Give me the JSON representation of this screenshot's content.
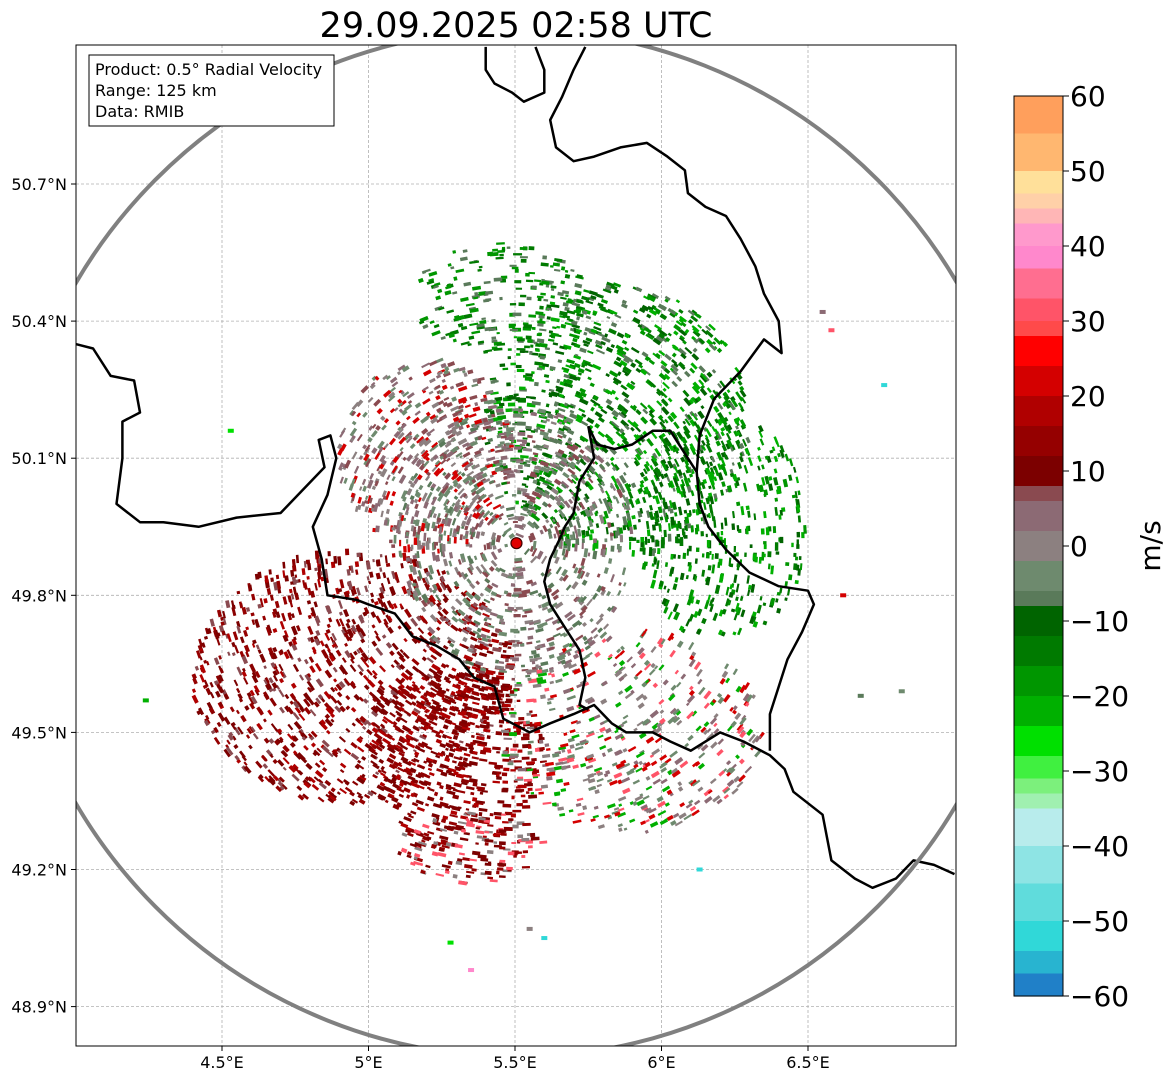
{
  "title": "29.09.2025 02:58 UTC",
  "info_box": {
    "product": "Product: 0.5° Radial Velocity",
    "range": "Range: 125 km",
    "data": "Data: RMIB"
  },
  "chart_data": {
    "type": "radar-map",
    "title": "29.09.2025 02:58 UTC",
    "xlim": [
      4.0,
      7.0
    ],
    "ylim": [
      48.8,
      51.0
    ],
    "x_ticks": [
      {
        "value": 4.5,
        "label": "4.5°E"
      },
      {
        "value": 5.0,
        "label": "5°E"
      },
      {
        "value": 5.5,
        "label": "5.5°E"
      },
      {
        "value": 6.0,
        "label": "6°E"
      },
      {
        "value": 6.5,
        "label": "6.5°E"
      }
    ],
    "y_ticks": [
      {
        "value": 50.7,
        "label": "50.7°N"
      },
      {
        "value": 50.4,
        "label": "50.4°N"
      },
      {
        "value": 50.1,
        "label": "50.1°N"
      },
      {
        "value": 49.8,
        "label": "49.8°N"
      },
      {
        "value": 49.5,
        "label": "49.5°N"
      },
      {
        "value": 49.2,
        "label": "49.2°N"
      },
      {
        "value": 48.9,
        "label": "48.9°N"
      }
    ],
    "radar_site": {
      "lon": 5.505,
      "lat": 49.914
    },
    "range_km": 125,
    "colorbar": {
      "label": "m/s",
      "min": -60,
      "max": 60,
      "ticks": [
        {
          "value": 60,
          "label": "60"
        },
        {
          "value": 50,
          "label": "50"
        },
        {
          "value": 40,
          "label": "40"
        },
        {
          "value": 30,
          "label": "30"
        },
        {
          "value": 20,
          "label": "20"
        },
        {
          "value": 10,
          "label": "10"
        },
        {
          "value": 0,
          "label": "0"
        },
        {
          "value": -10,
          "label": "−10"
        },
        {
          "value": -20,
          "label": "−20"
        },
        {
          "value": -30,
          "label": "−30"
        },
        {
          "value": -40,
          "label": "−40"
        },
        {
          "value": -50,
          "label": "−50"
        },
        {
          "value": -60,
          "label": "−60"
        }
      ],
      "bands": [
        {
          "from": 55,
          "to": 60,
          "color": "#ff9f5c"
        },
        {
          "from": 50,
          "to": 55,
          "color": "#ffb770"
        },
        {
          "from": 47,
          "to": 50,
          "color": "#ffe09a"
        },
        {
          "from": 45,
          "to": 47,
          "color": "#ffd0a8"
        },
        {
          "from": 43,
          "to": 45,
          "color": "#ffb6b6"
        },
        {
          "from": 40,
          "to": 43,
          "color": "#ff99cc"
        },
        {
          "from": 37,
          "to": 40,
          "color": "#ff88cc"
        },
        {
          "from": 33,
          "to": 37,
          "color": "#ff6e90"
        },
        {
          "from": 30,
          "to": 33,
          "color": "#ff5468"
        },
        {
          "from": 28,
          "to": 30,
          "color": "#ff4a4a"
        },
        {
          "from": 24,
          "to": 28,
          "color": "#ff0000"
        },
        {
          "from": 20,
          "to": 24,
          "color": "#d40000"
        },
        {
          "from": 16,
          "to": 20,
          "color": "#b00000"
        },
        {
          "from": 12,
          "to": 16,
          "color": "#950000"
        },
        {
          "from": 8,
          "to": 12,
          "color": "#7c0000"
        },
        {
          "from": 6,
          "to": 8,
          "color": "#8a4a50"
        },
        {
          "from": 2,
          "to": 6,
          "color": "#8c6a74"
        },
        {
          "from": -2,
          "to": 2,
          "color": "#8c8080"
        },
        {
          "from": -6,
          "to": -2,
          "color": "#6e8a6e"
        },
        {
          "from": -8,
          "to": -6,
          "color": "#5a7a5a"
        },
        {
          "from": -12,
          "to": -8,
          "color": "#006400"
        },
        {
          "from": -16,
          "to": -12,
          "color": "#007a00"
        },
        {
          "from": -20,
          "to": -16,
          "color": "#009600"
        },
        {
          "from": -24,
          "to": -20,
          "color": "#00b000"
        },
        {
          "from": -28,
          "to": -24,
          "color": "#00e000"
        },
        {
          "from": -31,
          "to": -28,
          "color": "#40f040"
        },
        {
          "from": -33,
          "to": -31,
          "color": "#7cf07c"
        },
        {
          "from": -35,
          "to": -33,
          "color": "#a0f0b0"
        },
        {
          "from": -40,
          "to": -35,
          "color": "#b8ecec"
        },
        {
          "from": -45,
          "to": -40,
          "color": "#8ee4e4"
        },
        {
          "from": -50,
          "to": -45,
          "color": "#60dcdc"
        },
        {
          "from": -54,
          "to": -50,
          "color": "#30d8d8"
        },
        {
          "from": -57,
          "to": -54,
          "color": "#28b4d0"
        },
        {
          "from": -60,
          "to": -57,
          "color": "#2080c8"
        }
      ]
    },
    "echo_regions": [
      {
        "lon": 4.95,
        "lat": 49.62,
        "rlon": 0.55,
        "rlat": 0.28,
        "n": 1100,
        "palette": [
          "#7c0000",
          "#950000",
          "#8a0000",
          "#b00000",
          "#7c0000",
          "#8a4a50"
        ]
      },
      {
        "lon": 5.3,
        "lat": 49.45,
        "rlon": 0.3,
        "rlat": 0.2,
        "n": 450,
        "palette": [
          "#7c0000",
          "#950000",
          "#8a0000",
          "#b00000"
        ]
      },
      {
        "lon": 5.85,
        "lat": 50.18,
        "rlon": 0.45,
        "rlat": 0.3,
        "n": 1000,
        "palette": [
          "#007a00",
          "#009600",
          "#006400",
          "#00b000",
          "#5a7a5a"
        ]
      },
      {
        "lon": 6.2,
        "lat": 49.95,
        "rlon": 0.3,
        "rlat": 0.25,
        "n": 400,
        "palette": [
          "#007a00",
          "#009600",
          "#00b000",
          "#006400"
        ]
      },
      {
        "lon": 5.5,
        "lat": 49.92,
        "rlon": 0.4,
        "rlat": 0.3,
        "n": 800,
        "palette": [
          "#8c8080",
          "#6e8a6e",
          "#8c6a74",
          "#5a7a5a",
          "#8a4a50"
        ]
      },
      {
        "lon": 5.2,
        "lat": 50.1,
        "rlon": 0.3,
        "rlat": 0.22,
        "n": 450,
        "palette": [
          "#8c8080",
          "#8c6a74",
          "#6e8a6e",
          "#8a4a50",
          "#d40000"
        ]
      },
      {
        "lon": 5.9,
        "lat": 49.5,
        "rlon": 0.45,
        "rlat": 0.22,
        "n": 500,
        "palette": [
          "#8c8080",
          "#8c6a74",
          "#6e8a6e",
          "#d40000",
          "#ff5468",
          "#00b000"
        ]
      },
      {
        "lon": 5.45,
        "lat": 50.45,
        "rlon": 0.3,
        "rlat": 0.12,
        "n": 200,
        "palette": [
          "#009600",
          "#5a7a5a",
          "#007a00"
        ]
      },
      {
        "lon": 5.35,
        "lat": 49.25,
        "rlon": 0.25,
        "rlat": 0.08,
        "n": 150,
        "palette": [
          "#7c0000",
          "#950000",
          "#ff5468",
          "#8c8080"
        ]
      }
    ],
    "sparse_echoes": [
      {
        "lon": 4.24,
        "lat": 49.57,
        "color": "#00b000"
      },
      {
        "lon": 4.53,
        "lat": 50.16,
        "color": "#00e000"
      },
      {
        "lon": 6.82,
        "lat": 49.59,
        "color": "#6e8a6e"
      },
      {
        "lon": 6.76,
        "lat": 50.26,
        "color": "#30d8d8"
      },
      {
        "lon": 6.68,
        "lat": 49.58,
        "color": "#5a7a5a"
      },
      {
        "lon": 5.6,
        "lat": 49.05,
        "color": "#30d8d8"
      },
      {
        "lon": 5.55,
        "lat": 49.07,
        "color": "#8c8080"
      },
      {
        "lon": 6.13,
        "lat": 49.2,
        "color": "#30d8d8"
      },
      {
        "lon": 6.62,
        "lat": 49.8,
        "color": "#d40000"
      },
      {
        "lon": 5.35,
        "lat": 48.98,
        "color": "#ff88cc"
      },
      {
        "lon": 5.28,
        "lat": 49.04,
        "color": "#00e000"
      },
      {
        "lon": 6.55,
        "lat": 50.42,
        "color": "#8c6a74"
      },
      {
        "lon": 6.58,
        "lat": 50.38,
        "color": "#ff5468"
      }
    ],
    "borders": [
      [
        [
          4.0,
          50.35
        ],
        [
          4.06,
          50.34
        ],
        [
          4.12,
          50.28
        ],
        [
          4.2,
          50.27
        ],
        [
          4.22,
          50.2
        ],
        [
          4.16,
          50.18
        ],
        [
          4.16,
          50.1
        ],
        [
          4.14,
          50.0
        ],
        [
          4.22,
          49.96
        ],
        [
          4.3,
          49.96
        ],
        [
          4.42,
          49.95
        ],
        [
          4.55,
          49.97
        ],
        [
          4.7,
          49.98
        ],
        [
          4.85,
          50.08
        ],
        [
          4.83,
          50.14
        ],
        [
          4.87,
          50.15
        ],
        [
          4.89,
          50.1
        ],
        [
          4.86,
          50.02
        ],
        [
          4.81,
          49.95
        ],
        [
          4.84,
          49.88
        ],
        [
          4.86,
          49.8
        ],
        [
          4.96,
          49.79
        ],
        [
          5.0,
          49.78
        ],
        [
          5.09,
          49.76
        ],
        [
          5.15,
          49.71
        ],
        [
          5.23,
          49.69
        ],
        [
          5.31,
          49.66
        ],
        [
          5.36,
          49.62
        ],
        [
          5.43,
          49.6
        ],
        [
          5.46,
          49.53
        ],
        [
          5.55,
          49.5
        ],
        [
          5.62,
          49.52
        ],
        [
          5.7,
          49.54
        ],
        [
          5.77,
          49.56
        ],
        [
          5.83,
          49.52
        ],
        [
          5.88,
          49.5
        ],
        [
          5.97,
          49.5
        ],
        [
          6.03,
          49.48
        ],
        [
          6.1,
          49.46
        ],
        [
          6.2,
          49.5
        ],
        [
          6.28,
          49.48
        ],
        [
          6.37,
          49.45
        ],
        [
          6.42,
          49.42
        ],
        [
          6.45,
          49.37
        ],
        [
          6.55,
          49.32
        ],
        [
          6.58,
          49.22
        ],
        [
          6.66,
          49.18
        ],
        [
          6.72,
          49.16
        ],
        [
          6.8,
          49.18
        ],
        [
          6.86,
          49.22
        ],
        [
          6.93,
          49.21
        ],
        [
          7.0,
          49.19
        ]
      ],
      [
        [
          5.75,
          50.17
        ],
        [
          5.78,
          50.13
        ],
        [
          5.84,
          50.12
        ],
        [
          5.9,
          50.13
        ],
        [
          5.97,
          50.16
        ],
        [
          6.03,
          50.16
        ],
        [
          6.07,
          50.12
        ],
        [
          6.12,
          50.07
        ],
        [
          6.13,
          50.0
        ],
        [
          6.16,
          49.95
        ],
        [
          6.22,
          49.9
        ],
        [
          6.3,
          49.85
        ],
        [
          6.4,
          49.82
        ],
        [
          6.5,
          49.81
        ],
        [
          6.52,
          49.78
        ],
        [
          6.48,
          49.72
        ],
        [
          6.43,
          49.66
        ],
        [
          6.4,
          49.6
        ],
        [
          6.37,
          49.54
        ],
        [
          6.37,
          49.46
        ]
      ],
      [
        [
          5.75,
          50.17
        ],
        [
          5.77,
          50.1
        ],
        [
          5.72,
          50.05
        ],
        [
          5.7,
          49.98
        ],
        [
          5.67,
          49.95
        ],
        [
          5.65,
          49.92
        ],
        [
          5.62,
          49.88
        ],
        [
          5.6,
          49.83
        ],
        [
          5.62,
          49.78
        ],
        [
          5.68,
          49.72
        ],
        [
          5.72,
          49.68
        ],
        [
          5.74,
          49.62
        ],
        [
          5.72,
          49.56
        ],
        [
          5.75,
          49.55
        ]
      ],
      [
        [
          6.12,
          50.07
        ],
        [
          6.13,
          50.15
        ],
        [
          6.18,
          50.23
        ],
        [
          6.27,
          50.29
        ],
        [
          6.35,
          50.36
        ],
        [
          6.41,
          50.33
        ],
        [
          6.4,
          50.4
        ],
        [
          6.35,
          50.46
        ],
        [
          6.32,
          50.52
        ],
        [
          6.27,
          50.58
        ],
        [
          6.22,
          50.63
        ],
        [
          6.15,
          50.65
        ],
        [
          6.09,
          50.68
        ],
        [
          6.08,
          50.73
        ],
        [
          6.02,
          50.76
        ],
        [
          5.95,
          50.79
        ],
        [
          5.86,
          50.78
        ],
        [
          5.77,
          50.76
        ],
        [
          5.7,
          50.75
        ],
        [
          5.64,
          50.78
        ],
        [
          5.62,
          50.84
        ],
        [
          5.66,
          50.89
        ],
        [
          5.7,
          50.95
        ],
        [
          5.74,
          51.0
        ]
      ],
      [
        [
          5.57,
          51.0
        ],
        [
          5.6,
          50.95
        ],
        [
          5.6,
          50.9
        ],
        [
          5.53,
          50.88
        ],
        [
          5.49,
          50.9
        ],
        [
          5.43,
          50.92
        ],
        [
          5.4,
          50.95
        ],
        [
          5.4,
          51.0
        ]
      ]
    ]
  }
}
